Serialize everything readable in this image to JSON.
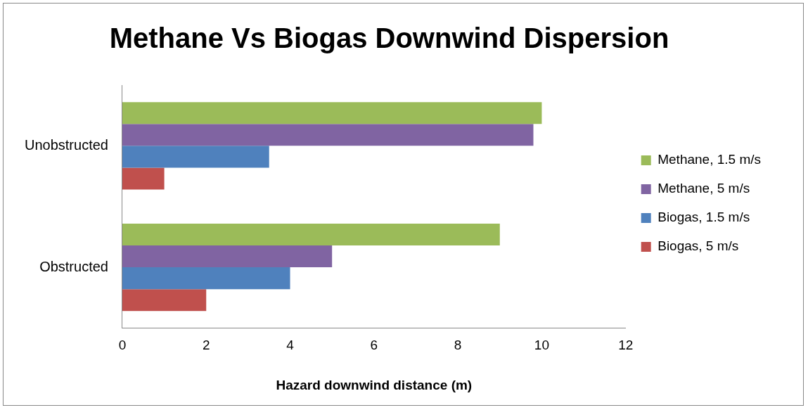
{
  "chart_data": {
    "type": "bar",
    "orientation": "horizontal",
    "title": "Methane Vs Biogas Downwind Dispersion",
    "xlabel": "Hazard downwind distance (m)",
    "categories": [
      "Unobstructed",
      "Obstructed"
    ],
    "series": [
      {
        "name": "Methane, 1.5 m/s",
        "color": "#9bbb59",
        "values": [
          10,
          9
        ]
      },
      {
        "name": "Methane, 5 m/s",
        "color": "#8064a2",
        "values": [
          9.8,
          5
        ]
      },
      {
        "name": "Biogas, 1.5 m/s",
        "color": "#4f81bd",
        "values": [
          3.5,
          4
        ]
      },
      {
        "name": "Biogas, 5 m/s",
        "color": "#c0504d",
        "values": [
          1,
          2
        ]
      }
    ],
    "xlim": [
      0,
      12
    ],
    "xticks": [
      0,
      2,
      4,
      6,
      8,
      10,
      12
    ],
    "grid": false,
    "legend": "right"
  }
}
